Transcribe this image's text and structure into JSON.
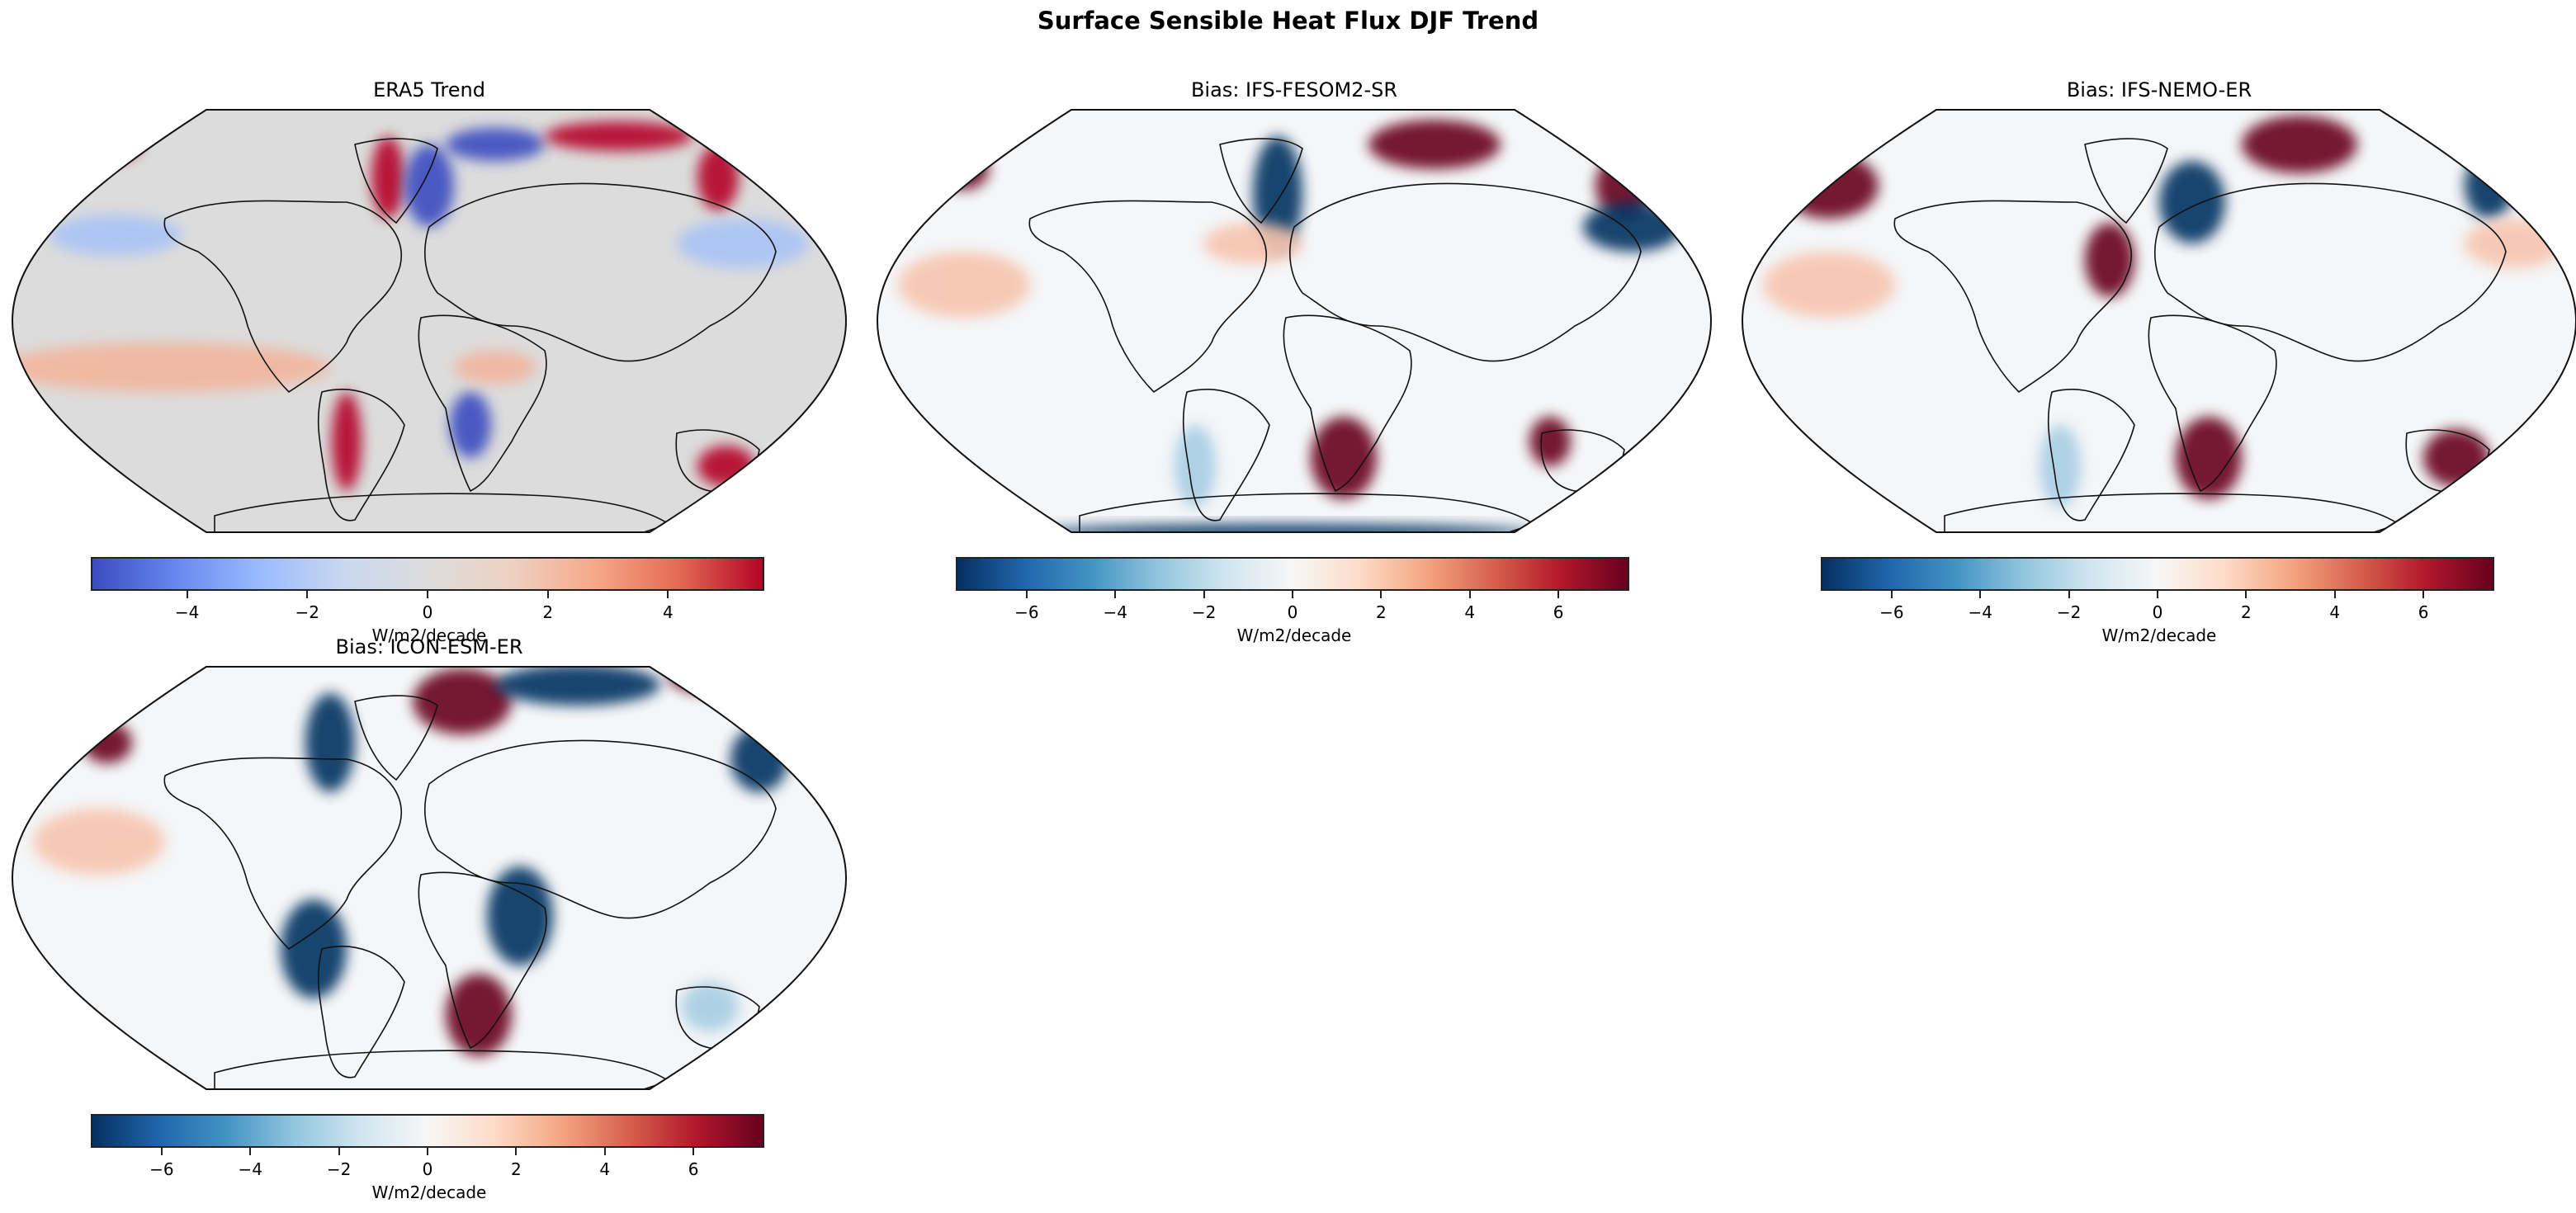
{
  "figure": {
    "suptitle": "Surface Sensible Heat Flux DJF Trend"
  },
  "panels": [
    {
      "title": "ERA5 Trend",
      "colormap": "coolwarm",
      "colorbar": {
        "label": "W/m2/decade",
        "vmin": -5.6,
        "vmax": 5.6,
        "ticks": [
          -4,
          -2,
          0,
          2,
          4
        ],
        "tick_labels": [
          "−4",
          "−2",
          "0",
          "2",
          "4"
        ],
        "colors": [
          "#3b4cc0",
          "#6788ee",
          "#9abbff",
          "#c9d7f0",
          "#dddcdc",
          "#edd1c2",
          "#f7a889",
          "#e36a53",
          "#b40426"
        ]
      }
    },
    {
      "title": "Bias: IFS-FESOM2-SR",
      "colormap": "RdBu_r",
      "colorbar": {
        "label": "W/m2/decade",
        "vmin": -7.6,
        "vmax": 7.6,
        "ticks": [
          -6,
          -4,
          -2,
          0,
          2,
          4,
          6
        ],
        "tick_labels": [
          "−6",
          "−4",
          "−2",
          "0",
          "2",
          "4",
          "6"
        ],
        "colors": [
          "#053061",
          "#2166ac",
          "#4393c3",
          "#92c5de",
          "#d1e5f0",
          "#f7f7f7",
          "#fddbc7",
          "#f4a582",
          "#d6604d",
          "#b2182b",
          "#67001f"
        ]
      }
    },
    {
      "title": "Bias: IFS-NEMO-ER",
      "colormap": "RdBu_r",
      "colorbar": {
        "label": "W/m2/decade",
        "vmin": -7.6,
        "vmax": 7.6,
        "ticks": [
          -6,
          -4,
          -2,
          0,
          2,
          4,
          6
        ],
        "tick_labels": [
          "−6",
          "−4",
          "−2",
          "0",
          "2",
          "4",
          "6"
        ],
        "colors": [
          "#053061",
          "#2166ac",
          "#4393c3",
          "#92c5de",
          "#d1e5f0",
          "#f7f7f7",
          "#fddbc7",
          "#f4a582",
          "#d6604d",
          "#b2182b",
          "#67001f"
        ]
      }
    },
    {
      "title": "Bias: ICON-ESM-ER",
      "colormap": "RdBu_r",
      "colorbar": {
        "label": "W/m2/decade",
        "vmin": -7.6,
        "vmax": 7.6,
        "ticks": [
          -6,
          -4,
          -2,
          0,
          2,
          4,
          6
        ],
        "tick_labels": [
          "−6",
          "−4",
          "−2",
          "0",
          "2",
          "4",
          "6"
        ],
        "colors": [
          "#053061",
          "#2166ac",
          "#4393c3",
          "#92c5de",
          "#d1e5f0",
          "#f7f7f7",
          "#fddbc7",
          "#f4a582",
          "#d6604d",
          "#b2182b",
          "#67001f"
        ]
      }
    }
  ],
  "chart_data": [
    {
      "type": "heatmap",
      "title": "ERA5 Trend",
      "projection": "Robinson (global map)",
      "colorbar_label": "W/m2/decade",
      "colorbar_range": [
        -5.6,
        5.6
      ],
      "colorbar_ticks": [
        -4,
        -2,
        0,
        2,
        4
      ],
      "notable_features": [
        "strong positive (red) trends over Hudson Bay, Labrador Sea coast, Barents/Kara Sea coast, Sea of Okhotsk",
        "strong negative (blue) in Greenland/Irminger Sea and Barents Sea",
        "positive over southern South America and central Africa, negative over southern Africa",
        "mixed pattern over Australia"
      ]
    },
    {
      "type": "heatmap",
      "title": "Bias: IFS-FESOM2-SR",
      "projection": "Robinson (global map)",
      "colorbar_label": "W/m2/decade",
      "colorbar_range": [
        -7.6,
        7.6
      ],
      "colorbar_ticks": [
        -6,
        -4,
        -2,
        0,
        2,
        4,
        6
      ],
      "notable_features": [
        "strong positive bias over Barents Sea and Bering Sea and Sea of Okhotsk",
        "strong negative bias in Labrador Sea/Greenland east coast",
        "strong positive bias over southern Africa, western Australia",
        "negative bias along Antarctic coast"
      ]
    },
    {
      "type": "heatmap",
      "title": "Bias: IFS-NEMO-ER",
      "projection": "Robinson (global map)",
      "colorbar_label": "W/m2/decade",
      "colorbar_range": [
        -7.6,
        7.6
      ],
      "colorbar_ticks": [
        -6,
        -4,
        -2,
        0,
        2,
        4,
        6
      ],
      "notable_features": [
        "positive bias over Gulf of Alaska and North Pacific, Gulf Stream",
        "positive bias over Barents/Nordic Seas, negative in Labrador Sea",
        "strong positive bias over southern Africa and Australia"
      ]
    },
    {
      "type": "heatmap",
      "title": "Bias: ICON-ESM-ER",
      "projection": "Robinson (global map)",
      "colorbar_label": "W/m2/decade",
      "colorbar_range": [
        -7.6,
        7.6
      ],
      "colorbar_ticks": [
        -6,
        -4,
        -2,
        0,
        2,
        4,
        6
      ],
      "notable_features": [
        "strong positive bias north of Norway / Nordic seas, negative in Barents/Kara Sea",
        "strong negative bias over Amazon and East Africa",
        "positive bias over southern Africa",
        "mixed pattern over Australia"
      ]
    }
  ]
}
